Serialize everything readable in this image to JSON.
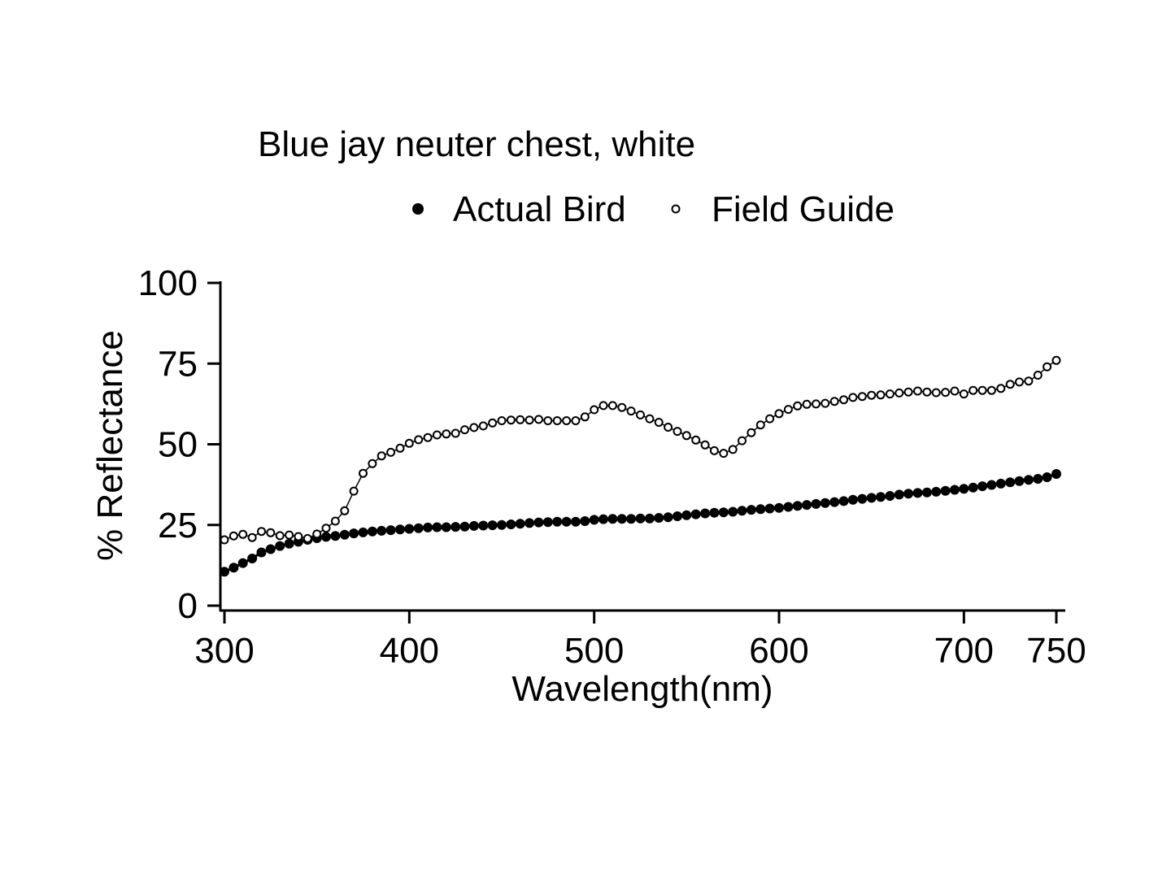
{
  "chart_data": {
    "type": "scatter",
    "title": "Blue jay neuter chest, white",
    "xlabel": "Wavelength(nm)",
    "ylabel": "% Reflectance",
    "xlim": [
      300,
      750
    ],
    "ylim": [
      0,
      100
    ],
    "xticks": [
      300,
      400,
      500,
      600,
      700,
      750
    ],
    "yticks": [
      0,
      25,
      50,
      75,
      100
    ],
    "grid": false,
    "legend_position": "top",
    "series": [
      {
        "name": "Actual Bird",
        "marker": "filled-circle",
        "color": "#000000",
        "x": [
          300,
          305,
          310,
          315,
          320,
          325,
          330,
          335,
          340,
          345,
          350,
          355,
          360,
          365,
          370,
          375,
          380,
          385,
          390,
          395,
          400,
          405,
          410,
          415,
          420,
          425,
          430,
          435,
          440,
          445,
          450,
          455,
          460,
          465,
          470,
          475,
          480,
          485,
          490,
          495,
          500,
          505,
          510,
          515,
          520,
          525,
          530,
          535,
          540,
          545,
          550,
          555,
          560,
          565,
          570,
          575,
          580,
          585,
          590,
          595,
          600,
          605,
          610,
          615,
          620,
          625,
          630,
          635,
          640,
          645,
          650,
          655,
          660,
          665,
          670,
          675,
          680,
          685,
          690,
          695,
          700,
          705,
          710,
          715,
          720,
          725,
          730,
          735,
          740,
          745,
          750
        ],
        "y": [
          10.5,
          11.8,
          13.2,
          14.6,
          16.5,
          17.5,
          18.5,
          19.2,
          19.8,
          20.4,
          20.9,
          21.3,
          21.6,
          22.0,
          22.4,
          22.7,
          23.0,
          23.2,
          23.4,
          23.6,
          23.8,
          24.0,
          24.2,
          24.3,
          24.3,
          24.4,
          24.5,
          24.7,
          24.8,
          24.9,
          25.0,
          25.2,
          25.4,
          25.6,
          25.8,
          25.9,
          26.0,
          26.0,
          26.0,
          26.2,
          26.6,
          26.8,
          26.9,
          26.9,
          26.9,
          27.0,
          27.0,
          27.2,
          27.4,
          27.7,
          28.0,
          28.3,
          28.6,
          28.8,
          28.9,
          29.1,
          29.4,
          29.7,
          29.9,
          30.1,
          30.3,
          30.6,
          30.9,
          31.2,
          31.5,
          31.8,
          32.1,
          32.4,
          32.8,
          33.1,
          33.4,
          33.7,
          34.0,
          34.4,
          34.7,
          34.9,
          35.1,
          35.3,
          35.6,
          35.9,
          36.2,
          36.6,
          37.0,
          37.4,
          37.8,
          38.2,
          38.6,
          39.0,
          39.3,
          39.8,
          40.8
        ]
      },
      {
        "name": "Field Guide",
        "marker": "open-circle",
        "color": "#000000",
        "x": [
          300,
          305,
          310,
          315,
          320,
          325,
          330,
          335,
          340,
          345,
          350,
          355,
          360,
          365,
          370,
          375,
          380,
          385,
          390,
          395,
          400,
          405,
          410,
          415,
          420,
          425,
          430,
          435,
          440,
          445,
          450,
          455,
          460,
          465,
          470,
          475,
          480,
          485,
          490,
          495,
          500,
          505,
          510,
          515,
          520,
          525,
          530,
          535,
          540,
          545,
          550,
          555,
          560,
          565,
          570,
          575,
          580,
          585,
          590,
          595,
          600,
          605,
          610,
          615,
          620,
          625,
          630,
          635,
          640,
          645,
          650,
          655,
          660,
          665,
          670,
          675,
          680,
          685,
          690,
          695,
          700,
          705,
          710,
          715,
          720,
          725,
          730,
          735,
          740,
          745,
          750
        ],
        "y": [
          20.4,
          21.6,
          22.1,
          21.1,
          23.0,
          22.6,
          21.7,
          21.9,
          21.4,
          20.8,
          22.2,
          24.0,
          26.2,
          29.4,
          35.5,
          41.0,
          44.0,
          46.4,
          47.5,
          48.8,
          50.3,
          51.4,
          52.1,
          52.9,
          53.2,
          53.4,
          54.5,
          55.2,
          55.7,
          56.6,
          57.3,
          57.5,
          57.6,
          57.5,
          57.7,
          57.3,
          57.3,
          57.3,
          57.3,
          58.5,
          60.7,
          62.0,
          62.0,
          61.4,
          60.3,
          59.1,
          57.9,
          56.8,
          55.3,
          54.0,
          52.7,
          51.3,
          49.8,
          48.0,
          47.2,
          48.4,
          51.1,
          53.6,
          56.0,
          57.9,
          59.5,
          60.8,
          61.9,
          62.4,
          62.5,
          62.7,
          63.3,
          63.8,
          64.5,
          64.8,
          65.2,
          65.3,
          65.6,
          65.9,
          66.2,
          66.5,
          66.2,
          66.0,
          66.1,
          66.5,
          65.6,
          66.7,
          66.7,
          66.7,
          67.3,
          68.6,
          69.3,
          69.6,
          71.4,
          74.0,
          76.0
        ]
      }
    ]
  }
}
